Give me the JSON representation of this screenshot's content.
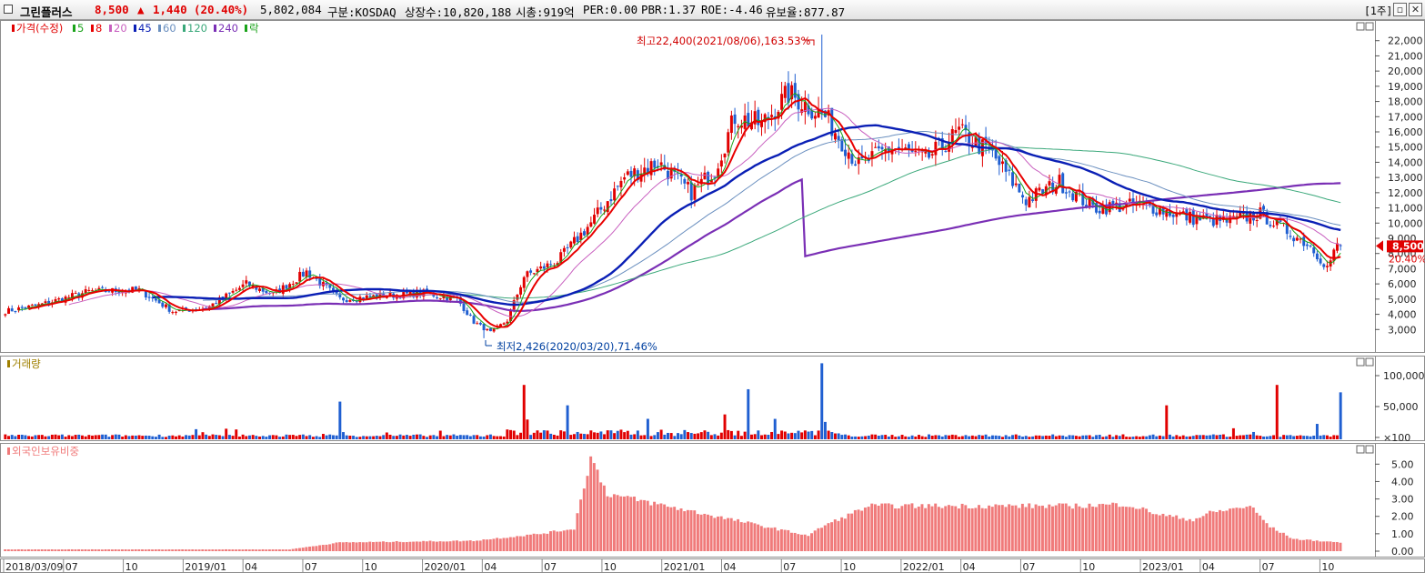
{
  "header": {
    "stock_name": "그린플러스",
    "price": "8,500",
    "change_arrow": "▲",
    "change": "1,440",
    "change_pct": "(20.40%)",
    "volume": "5,802,084",
    "market": "구분:KOSDAQ",
    "shares": "상장수:10,820,188",
    "market_cap": "시총:919억",
    "per": "PER:0.00",
    "pbr": "PBR:1.37",
    "roe": "ROE:-4.46",
    "float_ratio": "유보율:877.87",
    "period": "[1주]"
  },
  "colors": {
    "up": "#e10000",
    "down": "#1f5fd1",
    "ma5": "#1aa31a",
    "ma8": "#e80000",
    "ma20": "#c85fbf",
    "ma45": "#0a1fb5",
    "ma60": "#6a8fbf",
    "ma120": "#3aa87a",
    "ma240": "#7a2fb5",
    "foreign": "#f07a7a",
    "legend_vol": "#a08000"
  },
  "legend": {
    "price": "가격(수정)",
    "ma5": "5",
    "ma8": "8",
    "ma20": "20",
    "ma45": "45",
    "ma60": "60",
    "ma120": "120",
    "ma240": "240",
    "drop": "락",
    "volume": "거래량",
    "foreign": "외국인보유비중"
  },
  "annotations": {
    "high": "최고22,400(2021/08/06),163.53%",
    "low": "최저2,426(2020/03/20),71.46%",
    "last_price": "8,500",
    "last_pct": "20.40%"
  },
  "chart_data": [
    {
      "type": "candlestick",
      "title": "가격(수정)",
      "ylim": [
        2000,
        23000
      ],
      "yticks": [
        3000,
        4000,
        5000,
        6000,
        7000,
        8000,
        9000,
        10000,
        11000,
        12000,
        13000,
        14000,
        15000,
        16000,
        17000,
        18000,
        19000,
        20000,
        21000,
        22000
      ],
      "ytick_labels": [
        "3,000",
        "4,000",
        "5,000",
        "6,000",
        "7,000",
        "8,000",
        "9,000",
        "10,000",
        "11,000",
        "12,000",
        "13,000",
        "14,000",
        "15,000",
        "16,000",
        "17,000",
        "18,000",
        "19,000",
        "20,000",
        "21,000",
        "22,000"
      ],
      "x": [
        "2018/03/09",
        "07",
        "10",
        "2019/01",
        "04",
        "07",
        "10",
        "2020/01",
        "04",
        "07",
        "10",
        "2021/01",
        "04",
        "07",
        "10",
        "2022/01",
        "04",
        "07",
        "10",
        "2023/01",
        "04",
        "07",
        "10"
      ],
      "price_keypoints": [
        [
          0,
          4200
        ],
        [
          10,
          4600
        ],
        [
          25,
          5500
        ],
        [
          40,
          5600
        ],
        [
          50,
          4200
        ],
        [
          60,
          4400
        ],
        [
          72,
          6000
        ],
        [
          80,
          5300
        ],
        [
          90,
          6800
        ],
        [
          100,
          5000
        ],
        [
          112,
          5200
        ],
        [
          125,
          5400
        ],
        [
          135,
          5000
        ],
        [
          140,
          3500
        ],
        [
          145,
          2800
        ],
        [
          150,
          3600
        ],
        [
          155,
          6500
        ],
        [
          165,
          7500
        ],
        [
          175,
          10000
        ],
        [
          185,
          13000
        ],
        [
          195,
          14000
        ],
        [
          205,
          12000
        ],
        [
          212,
          13500
        ],
        [
          218,
          17000
        ],
        [
          226,
          16500
        ],
        [
          234,
          18500
        ],
        [
          245,
          17000
        ],
        [
          255,
          13800
        ],
        [
          265,
          15000
        ],
        [
          275,
          14200
        ],
        [
          285,
          16000
        ],
        [
          295,
          14500
        ],
        [
          305,
          11500
        ],
        [
          315,
          12700
        ],
        [
          325,
          11000
        ],
        [
          340,
          11200
        ],
        [
          355,
          10300
        ],
        [
          365,
          10100
        ],
        [
          375,
          10600
        ],
        [
          390,
          8500
        ],
        [
          395,
          7100
        ],
        [
          398,
          8500
        ]
      ],
      "high": {
        "value": 22400,
        "date": "2021/08/06"
      },
      "low": {
        "value": 2426,
        "date": "2020/03/20"
      },
      "moving_averages": [
        "5",
        "8",
        "20",
        "45",
        "60",
        "120",
        "240"
      ]
    },
    {
      "type": "bar",
      "title": "거래량",
      "yticks": [
        100,
        50000,
        100000
      ],
      "ytick_labels": [
        "×100",
        "50,000",
        "100,000"
      ],
      "ylim": [
        0,
        125000
      ],
      "spikes": [
        [
          100,
          58000
        ],
        [
          155,
          85000
        ],
        [
          168,
          52000
        ],
        [
          222,
          78000
        ],
        [
          244,
          120000
        ],
        [
          347,
          52000
        ],
        [
          380,
          85000
        ],
        [
          392,
          22000
        ],
        [
          399,
          73000
        ]
      ],
      "base": 3000
    },
    {
      "type": "bar",
      "title": "외국인보유비중",
      "yticks": [
        0,
        1,
        2,
        3,
        4,
        5
      ],
      "ytick_labels": [
        "0.00",
        "1.00",
        "2.00",
        "3.00",
        "4.00",
        "5.00"
      ],
      "ylim": [
        0,
        5.8
      ],
      "keypoints": [
        [
          0,
          0.1
        ],
        [
          85,
          0.1
        ],
        [
          100,
          0.5
        ],
        [
          140,
          0.6
        ],
        [
          160,
          1.0
        ],
        [
          170,
          1.3
        ],
        [
          175,
          5.4
        ],
        [
          180,
          3.3
        ],
        [
          190,
          2.9
        ],
        [
          210,
          2.1
        ],
        [
          230,
          1.3
        ],
        [
          240,
          0.9
        ],
        [
          245,
          1.5
        ],
        [
          250,
          1.9
        ],
        [
          258,
          2.6
        ],
        [
          300,
          2.6
        ],
        [
          320,
          2.6
        ],
        [
          335,
          2.7
        ],
        [
          345,
          2.1
        ],
        [
          355,
          1.8
        ],
        [
          360,
          2.2
        ],
        [
          372,
          2.6
        ],
        [
          378,
          1.4
        ],
        [
          385,
          0.7
        ],
        [
          399,
          0.5
        ]
      ]
    }
  ]
}
